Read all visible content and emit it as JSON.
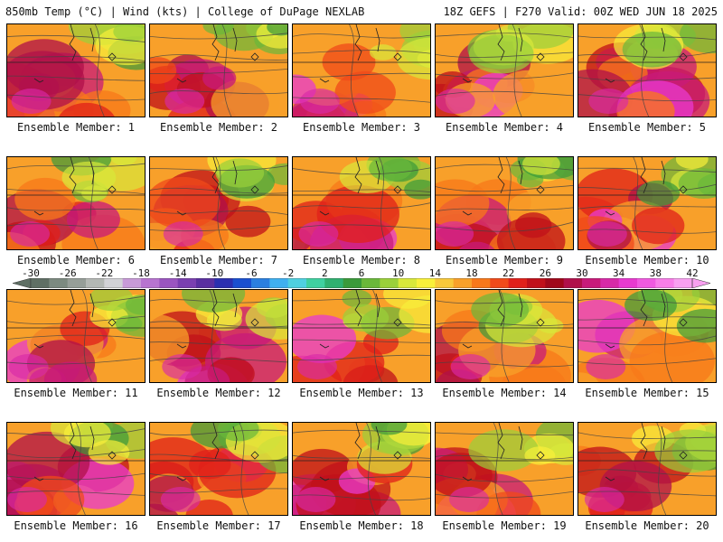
{
  "header": {
    "left_title": "850mb Temp (°C) | Wind (kts) | College of DuPage NEXLAB",
    "right_title": "18Z GEFS | F270 Valid: 00Z WED JUN 18 2025"
  },
  "colorbar": {
    "tick_labels": [
      "-30",
      "-26",
      "-22",
      "-18",
      "-14",
      "-10",
      "-6",
      "-2",
      "2",
      "6",
      "10",
      "14",
      "18",
      "22",
      "26",
      "30",
      "34",
      "38",
      "42"
    ],
    "colors": [
      "#5f6f64",
      "#7c8a80",
      "#969e98",
      "#b4b8b4",
      "#d2d2d6",
      "#c89ad8",
      "#b774d0",
      "#9a55c0",
      "#7a3fb0",
      "#5a2fa0",
      "#2b2fb0",
      "#1a4fd0",
      "#2a7fe0",
      "#3fb0f0",
      "#4fd0e0",
      "#3fd0a0",
      "#2fb070",
      "#3a9a3a",
      "#6ab83a",
      "#9ad03a",
      "#d8e83a",
      "#f8f03a",
      "#f8c83a",
      "#f8a02a",
      "#f8781a",
      "#f04a1a",
      "#e0201a",
      "#c0101a",
      "#a0081a",
      "#b0104a",
      "#c81a7a",
      "#d82aa8",
      "#e83ad0",
      "#f05ae0",
      "#f87ee8",
      "#f8a0f0"
    ]
  },
  "members": [
    {
      "label": "Ensemble Member: 1"
    },
    {
      "label": "Ensemble Member: 2"
    },
    {
      "label": "Ensemble Member: 3"
    },
    {
      "label": "Ensemble Member: 4"
    },
    {
      "label": "Ensemble Member: 5"
    },
    {
      "label": "Ensemble Member: 6"
    },
    {
      "label": "Ensemble Member: 7"
    },
    {
      "label": "Ensemble Member: 8"
    },
    {
      "label": "Ensemble Member: 9"
    },
    {
      "label": "Ensemble Member: 10"
    },
    {
      "label": "Ensemble Member: 11"
    },
    {
      "label": "Ensemble Member: 12"
    },
    {
      "label": "Ensemble Member: 13"
    },
    {
      "label": "Ensemble Member: 14"
    },
    {
      "label": "Ensemble Member: 15"
    },
    {
      "label": "Ensemble Member: 16"
    },
    {
      "label": "Ensemble Member: 17"
    },
    {
      "label": "Ensemble Member: 18"
    },
    {
      "label": "Ensemble Member: 19"
    },
    {
      "label": "Ensemble Member: 20"
    }
  ]
}
